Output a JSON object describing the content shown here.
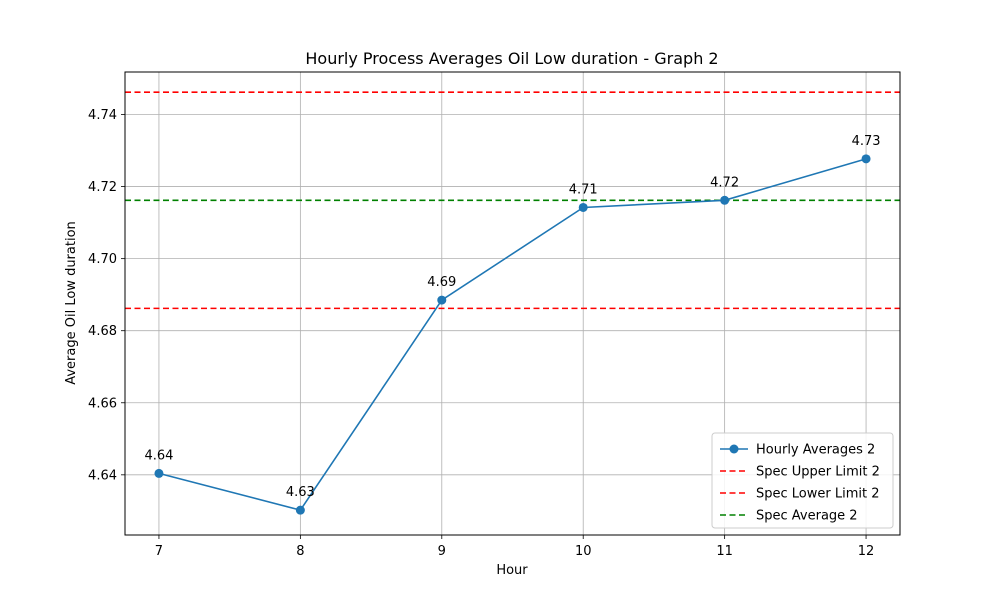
{
  "chart_data": {
    "type": "line",
    "title": "Hourly Process Averages Oil Low duration - Graph 2",
    "xlabel": "Hour",
    "ylabel": "Average Oil Low duration",
    "x": [
      7,
      8,
      9,
      10,
      11,
      12
    ],
    "xlim": [
      6.76,
      12.24
    ],
    "ylim": [
      4.6233,
      4.7518
    ],
    "xticks": [
      7,
      8,
      9,
      10,
      11,
      12
    ],
    "yticks": [
      4.64,
      4.66,
      4.68,
      4.7,
      4.72,
      4.74
    ],
    "ytick_labels": [
      "4.64",
      "4.66",
      "4.68",
      "4.70",
      "4.72",
      "4.74"
    ],
    "grid": true,
    "legend_position": "lower-right",
    "series": [
      {
        "name": "Hourly Averages 2",
        "color": "#1f77b4",
        "marker": "circle",
        "values": [
          4.6404,
          4.6302,
          4.6885,
          4.7142,
          4.7162,
          4.7277
        ],
        "labels": [
          "4.64",
          "4.63",
          "4.69",
          "4.71",
          "4.72",
          "4.73"
        ]
      }
    ],
    "reference_lines": [
      {
        "name": "Spec Upper Limit 2",
        "value": 4.7462,
        "color": "#ff0000",
        "style": "dashed"
      },
      {
        "name": "Spec Lower Limit 2",
        "value": 4.6862,
        "color": "#ff0000",
        "style": "dashed"
      },
      {
        "name": "Spec Average 2",
        "value": 4.7162,
        "color": "#008000",
        "style": "dashed"
      }
    ]
  }
}
